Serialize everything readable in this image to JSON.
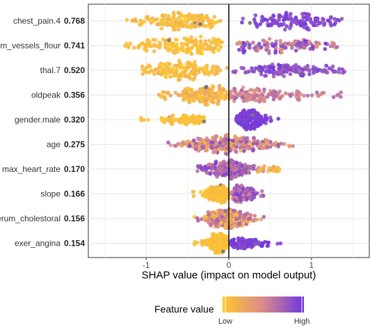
{
  "chart_data": {
    "type": "scatter",
    "subtype": "shap-beeswarm",
    "title": "",
    "xlabel": "SHAP value (impact on model output)",
    "xlim": [
      -1.7,
      1.7
    ],
    "x_ticks": [
      -1,
      0,
      1
    ],
    "x_tick_labels": [
      "-1",
      "0",
      "1"
    ],
    "grid": true,
    "zero_line": true,
    "legend": {
      "title": "Feature value",
      "low_label": "Low",
      "high_label": "High",
      "position": "bottom",
      "colors": [
        "#FFC82E",
        "#D98A8C",
        "#6E34E0"
      ]
    },
    "features": [
      {
        "name": "chest_pain.4",
        "mean_abs_shap": "0.768",
        "clusters": [
          {
            "x_min": -1.25,
            "x_max": -0.1,
            "center": -0.6,
            "spread": 0.34,
            "n": 150,
            "value_low": 0.0,
            "value_high": 0.2
          },
          {
            "x_min": 0.15,
            "x_max": 1.38,
            "center": 0.85,
            "spread": 0.34,
            "n": 135,
            "value_low": 0.82,
            "value_high": 1.0
          }
        ]
      },
      {
        "name": "num_vessels_flour",
        "mean_abs_shap": "0.741",
        "clusters": [
          {
            "x_min": -1.3,
            "x_max": -0.08,
            "center": -0.5,
            "spread": 0.4,
            "n": 170,
            "value_low": 0.0,
            "value_high": 0.15
          },
          {
            "x_min": 0.1,
            "x_max": 1.45,
            "center": 0.6,
            "spread": 0.45,
            "n": 120,
            "value_low": 0.35,
            "value_high": 1.0
          }
        ]
      },
      {
        "name": "thal.7",
        "mean_abs_shap": "0.520",
        "clusters": [
          {
            "x_min": -1.05,
            "x_max": 0.0,
            "center": -0.55,
            "spread": 0.28,
            "n": 160,
            "value_low": 0.0,
            "value_high": 0.18
          },
          {
            "x_min": 0.05,
            "x_max": 1.4,
            "center": 0.7,
            "spread": 0.38,
            "n": 130,
            "value_low": 0.75,
            "value_high": 1.0
          }
        ]
      },
      {
        "name": "oldpeak",
        "mean_abs_shap": "0.356",
        "clusters": [
          {
            "x_min": -0.85,
            "x_max": 0.0,
            "center": -0.25,
            "spread": 0.22,
            "n": 160,
            "value_low": 0.0,
            "value_high": 0.3
          },
          {
            "x_min": 0.0,
            "x_max": 1.4,
            "center": 0.3,
            "spread": 0.38,
            "n": 140,
            "value_low": 0.35,
            "value_high": 0.75
          }
        ]
      },
      {
        "name": "gender.male",
        "mean_abs_shap": "0.320",
        "clusters": [
          {
            "x_min": -1.15,
            "x_max": -0.25,
            "center": -0.5,
            "spread": 0.2,
            "n": 95,
            "value_low": 0.0,
            "value_high": 0.12
          },
          {
            "x_min": 0.08,
            "x_max": 0.6,
            "center": 0.25,
            "spread": 0.09,
            "n": 210,
            "value_low": 0.88,
            "value_high": 1.0
          }
        ]
      },
      {
        "name": "age",
        "mean_abs_shap": "0.275",
        "clusters": [
          {
            "x_min": -0.75,
            "x_max": 0.88,
            "center": 0.0,
            "spread": 0.3,
            "n": 300,
            "value_low": 0.2,
            "value_high": 0.9
          }
        ]
      },
      {
        "name": "max_heart_rate",
        "mean_abs_shap": "0.170",
        "clusters": [
          {
            "x_min": -0.38,
            "x_max": 0.6,
            "center": 0.0,
            "spread": 0.16,
            "n": 230,
            "value_low": 0.55,
            "value_high": 0.95
          },
          {
            "x_min": 0.3,
            "x_max": 0.75,
            "center": 0.5,
            "spread": 0.12,
            "n": 20,
            "value_low": 0.05,
            "value_high": 0.3
          }
        ]
      },
      {
        "name": "slope",
        "mean_abs_shap": "0.166",
        "clusters": [
          {
            "x_min": -0.45,
            "x_max": 0.0,
            "center": -0.12,
            "spread": 0.09,
            "n": 150,
            "value_low": 0.0,
            "value_high": 0.15
          },
          {
            "x_min": 0.03,
            "x_max": 0.47,
            "center": 0.17,
            "spread": 0.09,
            "n": 130,
            "value_low": 0.5,
            "value_high": 0.95
          }
        ]
      },
      {
        "name": "serum_cholestoral",
        "mean_abs_shap": "0.156",
        "clusters": [
          {
            "x_min": -0.52,
            "x_max": 0.6,
            "center": 0.0,
            "spread": 0.16,
            "n": 300,
            "value_low": 0.0,
            "value_high": 0.75
          }
        ]
      },
      {
        "name": "exer_angina",
        "mean_abs_shap": "0.154",
        "clusters": [
          {
            "x_min": -0.42,
            "x_max": -0.02,
            "center": -0.1,
            "spread": 0.09,
            "n": 185,
            "value_low": 0.0,
            "value_high": 0.12
          },
          {
            "x_min": 0.02,
            "x_max": 0.65,
            "center": 0.2,
            "spread": 0.12,
            "n": 100,
            "value_low": 0.88,
            "value_high": 1.0
          }
        ]
      }
    ]
  }
}
